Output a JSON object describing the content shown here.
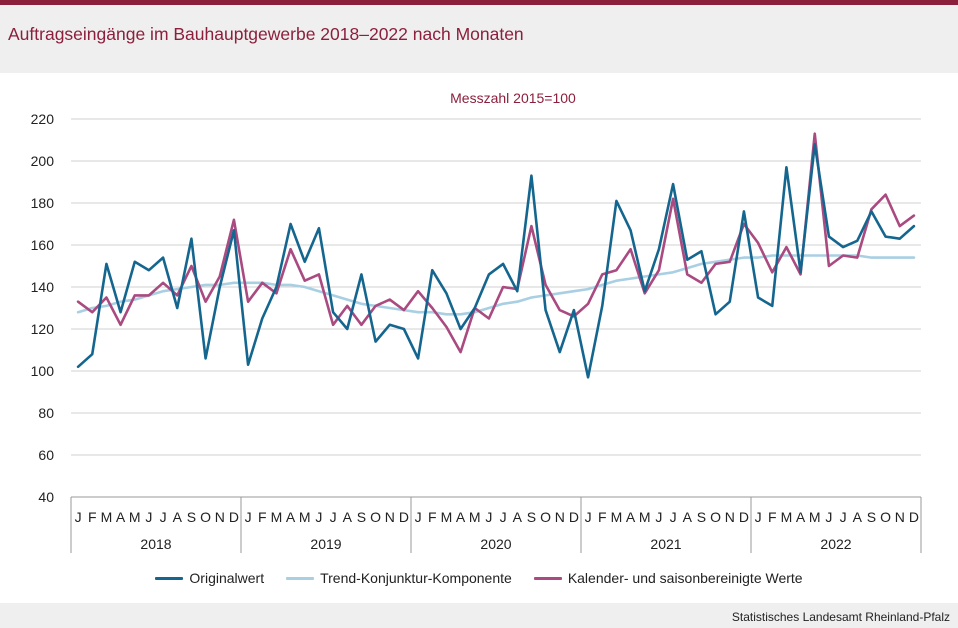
{
  "header": {
    "title": "Auftragseingänge im Bauhauptgewerbe 2018–2022 nach Monaten"
  },
  "footer": {
    "source": "Statistisches Landesamt Rheinland-Pfalz"
  },
  "colors": {
    "accent": "#8c1f3c",
    "background": "#efefef",
    "original": "#15668f",
    "trend": "#a9cfe3",
    "seasonal": "#a94a80"
  },
  "chart_data": {
    "type": "line",
    "title": "Messzahl 2015=100",
    "ylim": [
      40,
      220
    ],
    "yticks": [
      40,
      60,
      80,
      100,
      120,
      140,
      160,
      180,
      200,
      220
    ],
    "grid": true,
    "legend": "bottom",
    "months": [
      "J",
      "F",
      "M",
      "A",
      "M",
      "J",
      "J",
      "A",
      "S",
      "O",
      "N",
      "D"
    ],
    "years": [
      "2018",
      "2019",
      "2020",
      "2021",
      "2022"
    ],
    "series": [
      {
        "name": "Originalwert",
        "color": "#15668f",
        "values": [
          102,
          108,
          151,
          128,
          152,
          148,
          154,
          130,
          163,
          106,
          140,
          167,
          103,
          125,
          140,
          170,
          152,
          168,
          128,
          120,
          146,
          114,
          122,
          120,
          106,
          148,
          137,
          120,
          130,
          146,
          151,
          138,
          193,
          129,
          109,
          129,
          97,
          131,
          181,
          167,
          138,
          158,
          189,
          153,
          157,
          127,
          133,
          176,
          135,
          131,
          197,
          147,
          208,
          164,
          159,
          162,
          176,
          164,
          163,
          169
        ]
      },
      {
        "name": "Trend-Konjunktur-Komponente",
        "color": "#a9cfe3",
        "values": [
          128,
          130,
          131,
          133,
          134,
          136,
          138,
          139,
          140,
          141,
          141,
          142,
          142,
          142,
          141,
          141,
          140,
          138,
          136,
          134,
          132,
          131,
          130,
          129,
          128,
          128,
          127,
          127,
          128,
          130,
          132,
          133,
          135,
          136,
          137,
          138,
          139,
          141,
          143,
          144,
          145,
          146,
          147,
          149,
          151,
          152,
          153,
          154,
          154,
          155,
          155,
          155,
          155,
          155,
          155,
          155,
          154,
          154,
          154,
          154
        ]
      },
      {
        "name": "Kalender- und saisonbereinigte Werte",
        "color": "#a94a80",
        "values": [
          133,
          128,
          135,
          122,
          136,
          136,
          142,
          136,
          150,
          133,
          145,
          172,
          133,
          142,
          137,
          158,
          143,
          146,
          122,
          131,
          122,
          131,
          134,
          129,
          138,
          130,
          121,
          109,
          130,
          125,
          140,
          139,
          169,
          141,
          129,
          126,
          132,
          146,
          148,
          158,
          137,
          148,
          182,
          146,
          142,
          151,
          152,
          170,
          161,
          147,
          159,
          146,
          213,
          150,
          155,
          154,
          177,
          184,
          169,
          174
        ]
      }
    ]
  }
}
